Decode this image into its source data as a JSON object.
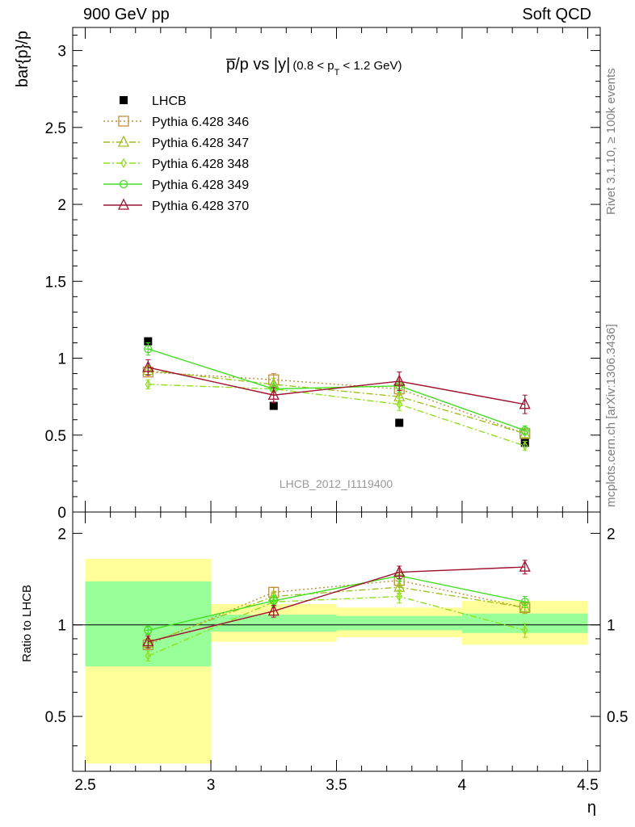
{
  "header": {
    "left": "900 GeV pp",
    "right": "Soft QCD"
  },
  "side_labels": {
    "top": "Rivet 3.1.10, ≥ 100k events",
    "bottom": "mcplots.cern.ch [arXiv:1306.3436]"
  },
  "plot_title": {
    "main": "p̅/p vs |y|",
    "sub_open": "(0.8 < p",
    "sub_sub": "T",
    "sub_close": " < 1.2 GeV)"
  },
  "watermark": "LHCB_2012_I1119400",
  "colors": {
    "LHCB": "#000000",
    "p346": "#bf8f40",
    "p347": "#a0c020",
    "p348": "#90e020",
    "p349": "#40e020",
    "p370": "#a01030",
    "band_inner": "#99ff99",
    "band_outer": "#ffff99"
  },
  "chart_data": [
    {
      "type": "scatter",
      "ylabel": "bar{p}/p",
      "xlim": [
        2.45,
        4.55
      ],
      "ylim": [
        0,
        3.15
      ],
      "yticks": [
        "0",
        "0.5",
        "1",
        "1.5",
        "2",
        "2.5",
        "3"
      ],
      "legend_placement": "top-left",
      "series": [
        {
          "name": "LHCB",
          "style": "data",
          "x": [
            2.75,
            3.25,
            3.75,
            4.25
          ],
          "y": [
            1.11,
            0.69,
            0.58,
            0.45
          ]
        },
        {
          "name": "Pythia 6.428 346",
          "style": "square-open-dotted",
          "x": [
            2.75,
            3.25,
            3.75,
            4.25
          ],
          "y": [
            0.91,
            0.86,
            0.8,
            0.51
          ],
          "err": [
            0.03,
            0.04,
            0.04,
            0.03
          ]
        },
        {
          "name": "Pythia 6.428 347",
          "style": "triangle-open-dashdot",
          "x": [
            2.75,
            3.25,
            3.75,
            4.25
          ],
          "y": [
            0.92,
            0.83,
            0.75,
            0.51
          ],
          "err": [
            0.03,
            0.04,
            0.04,
            0.03
          ]
        },
        {
          "name": "Pythia 6.428 348",
          "style": "diamond-open-dashdot",
          "x": [
            2.75,
            3.25,
            3.75,
            4.25
          ],
          "y": [
            0.83,
            0.8,
            0.7,
            0.43
          ],
          "err": [
            0.03,
            0.04,
            0.04,
            0.03
          ]
        },
        {
          "name": "Pythia 6.428 349",
          "style": "circle-cross-solid",
          "x": [
            2.75,
            3.25,
            3.75,
            4.25
          ],
          "y": [
            1.06,
            0.8,
            0.82,
            0.53
          ],
          "err": [
            0.04,
            0.04,
            0.04,
            0.03
          ]
        },
        {
          "name": "Pythia 6.428 370",
          "style": "triangle-open-solid",
          "x": [
            2.75,
            3.25,
            3.75,
            4.25
          ],
          "y": [
            0.94,
            0.76,
            0.85,
            0.7
          ],
          "err": [
            0.05,
            0.05,
            0.06,
            0.06
          ]
        }
      ]
    },
    {
      "type": "scatter",
      "xlabel": "η",
      "ylabel": "Ratio to LHCB",
      "xlim": [
        2.45,
        4.55
      ],
      "ylim": [
        0.33,
        2.35
      ],
      "log_scale_y": true,
      "xticks": [
        "2.5",
        "3",
        "3.5",
        "4",
        "4.5"
      ],
      "yticks": [
        "0.5",
        "1",
        "2"
      ],
      "bands": [
        {
          "x": [
            2.5,
            3.0
          ],
          "inner": [
            0.73,
            1.39
          ],
          "outer": [
            0.35,
            1.65
          ]
        },
        {
          "x": [
            3.0,
            3.5
          ],
          "inner": [
            0.95,
            1.08
          ],
          "outer": [
            0.88,
            1.17
          ]
        },
        {
          "x": [
            3.5,
            4.0
          ],
          "inner": [
            0.96,
            1.07
          ],
          "outer": [
            0.91,
            1.14
          ]
        },
        {
          "x": [
            4.0,
            4.5
          ],
          "inner": [
            0.94,
            1.09
          ],
          "outer": [
            0.86,
            1.2
          ]
        }
      ],
      "series": [
        {
          "name": "Pythia 6.428 346",
          "x": [
            2.75,
            3.25,
            3.75,
            4.25
          ],
          "y": [
            0.86,
            1.28,
            1.4,
            1.14
          ],
          "err": [
            0.03,
            0.05,
            0.06,
            0.05
          ]
        },
        {
          "name": "Pythia 6.428 347",
          "x": [
            2.75,
            3.25,
            3.75,
            4.25
          ],
          "y": [
            0.87,
            1.24,
            1.33,
            1.14
          ],
          "err": [
            0.03,
            0.05,
            0.06,
            0.05
          ]
        },
        {
          "name": "Pythia 6.428 348",
          "x": [
            2.75,
            3.25,
            3.75,
            4.25
          ],
          "y": [
            0.79,
            1.19,
            1.24,
            0.96
          ],
          "err": [
            0.03,
            0.05,
            0.06,
            0.05
          ]
        },
        {
          "name": "Pythia 6.428 349",
          "x": [
            2.75,
            3.25,
            3.75,
            4.25
          ],
          "y": [
            0.96,
            1.2,
            1.45,
            1.19
          ],
          "err": [
            0.03,
            0.05,
            0.06,
            0.05
          ]
        },
        {
          "name": "Pythia 6.428 370",
          "x": [
            2.75,
            3.25,
            3.75,
            4.25
          ],
          "y": [
            0.88,
            1.11,
            1.49,
            1.55
          ],
          "err": [
            0.04,
            0.05,
            0.07,
            0.08
          ]
        }
      ]
    }
  ]
}
